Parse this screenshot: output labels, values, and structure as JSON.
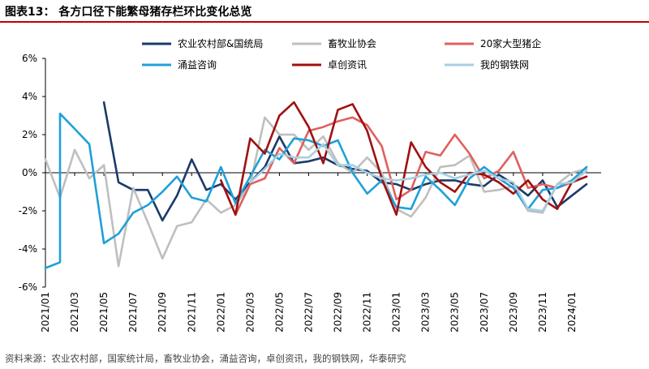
{
  "figure": {
    "title": "图表13：  各方口径下能繁母猪存栏环比变化总览",
    "source": "资料来源：农业农村部，国家统计局，畜牧业协会，涌益咨询，卓创资讯，我的钢铁网，华泰研究"
  },
  "chart_data": {
    "type": "line",
    "ylim": [
      -6,
      6
    ],
    "y_ticks": [
      6,
      4,
      2,
      0,
      -2,
      -4,
      -6
    ],
    "y_tick_labels": [
      "6%",
      "4%",
      "2%",
      "0%",
      "-2%",
      "-4%",
      "-6%"
    ],
    "x_range": [
      "2021/01",
      "2024/03"
    ],
    "x_tick_labels": [
      "2021/01",
      "2021/03",
      "2021/05",
      "2021/07",
      "2021/09",
      "2021/11",
      "2022/01",
      "2022/03",
      "2022/05",
      "2022/07",
      "2022/09",
      "2022/11",
      "2023/01",
      "2023/03",
      "2023/05",
      "2023/07",
      "2023/09",
      "2023/11",
      "2024/01"
    ],
    "legend_position": "top",
    "series": [
      {
        "name": "农业农村部&国统局",
        "color": "#1b3a6b",
        "points": [
          [
            "2021/05",
            3.7
          ],
          [
            "2021/06",
            -0.5
          ],
          [
            "2021/07",
            -0.9
          ],
          [
            "2021/08",
            -0.9
          ],
          [
            "2021/09",
            -2.5
          ],
          [
            "2021/10",
            -1.2
          ],
          [
            "2021/11",
            0.7
          ],
          [
            "2021/12",
            -0.9
          ],
          [
            "2022/01",
            -0.6
          ],
          [
            "2022/02",
            -1.4
          ],
          [
            "2022/03",
            -0.5
          ],
          [
            "2022/04",
            0.3
          ],
          [
            "2022/05",
            1.9
          ],
          [
            "2022/06",
            0.5
          ],
          [
            "2022/07",
            0.6
          ],
          [
            "2022/08",
            0.8
          ],
          [
            "2022/09",
            0.4
          ],
          [
            "2022/10",
            0.2
          ],
          [
            "2022/11",
            0.1
          ],
          [
            "2022/12",
            -0.5
          ],
          [
            "2023/01",
            -0.6
          ],
          [
            "2023/02",
            -0.9
          ],
          [
            "2023/03",
            -0.6
          ],
          [
            "2023/04",
            -0.4
          ],
          [
            "2023/05",
            -0.4
          ],
          [
            "2023/06",
            -0.6
          ],
          [
            "2023/07",
            -0.7
          ],
          [
            "2023/08",
            -0.1
          ],
          [
            "2023/09",
            -0.6
          ],
          [
            "2023/10",
            -1.2
          ],
          [
            "2023/11",
            -0.4
          ],
          [
            "2023/12",
            -1.8
          ],
          [
            "2024/01",
            -1.2
          ],
          [
            "2024/02",
            -0.6
          ]
        ]
      },
      {
        "name": "畜牧业协会",
        "color": "#bfbfbf",
        "points": [
          [
            "2021/01",
            0.7
          ],
          [
            "2021/02",
            -1.3
          ],
          [
            "2021/03",
            1.2
          ],
          [
            "2021/04",
            -0.3
          ],
          [
            "2021/05",
            0.4
          ],
          [
            "2021/06",
            -4.9
          ],
          [
            "2021/07",
            -0.8
          ],
          [
            "2021/08",
            -2.6
          ],
          [
            "2021/09",
            -4.5
          ],
          [
            "2021/10",
            -2.8
          ],
          [
            "2021/11",
            -2.6
          ],
          [
            "2021/12",
            -1.4
          ],
          [
            "2022/01",
            -2.1
          ],
          [
            "2022/02",
            -1.7
          ],
          [
            "2022/03",
            -0.6
          ],
          [
            "2022/04",
            2.9
          ],
          [
            "2022/05",
            2.0
          ],
          [
            "2022/06",
            2.0
          ],
          [
            "2022/07",
            1.2
          ],
          [
            "2022/08",
            1.9
          ],
          [
            "2022/09",
            0.5
          ],
          [
            "2022/10",
            0.0
          ],
          [
            "2022/11",
            0.8
          ],
          [
            "2022/12",
            0.0
          ],
          [
            "2023/01",
            -1.9
          ],
          [
            "2023/02",
            -2.3
          ],
          [
            "2023/03",
            -1.3
          ],
          [
            "2023/04",
            0.3
          ],
          [
            "2023/05",
            0.4
          ],
          [
            "2023/06",
            0.9
          ],
          [
            "2023/07",
            -1.0
          ],
          [
            "2023/08",
            -0.9
          ],
          [
            "2023/09",
            -0.7
          ],
          [
            "2023/10",
            -2.0
          ],
          [
            "2023/11",
            -2.1
          ],
          [
            "2023/12",
            -0.6
          ],
          [
            "2024/01",
            0.0
          ],
          [
            "2024/02",
            0.2
          ]
        ]
      },
      {
        "name": "20家大型猪企",
        "color": "#e06060",
        "points": [
          [
            "2022/02",
            -2.2
          ],
          [
            "2022/03",
            -0.6
          ],
          [
            "2022/04",
            -0.3
          ],
          [
            "2022/05",
            1.3
          ],
          [
            "2022/06",
            0.5
          ],
          [
            "2022/07",
            2.2
          ],
          [
            "2022/08",
            2.4
          ],
          [
            "2022/09",
            2.7
          ],
          [
            "2022/10",
            2.9
          ],
          [
            "2022/11",
            2.5
          ],
          [
            "2022/12",
            1.4
          ],
          [
            "2023/01",
            -1.4
          ],
          [
            "2023/02",
            -0.9
          ],
          [
            "2023/03",
            1.1
          ],
          [
            "2023/04",
            0.9
          ],
          [
            "2023/05",
            2.0
          ],
          [
            "2023/06",
            1.0
          ],
          [
            "2023/07",
            -0.3
          ],
          [
            "2023/08",
            0.1
          ],
          [
            "2023/09",
            1.1
          ],
          [
            "2023/10",
            -0.8
          ],
          [
            "2023/11",
            -0.6
          ],
          [
            "2023/12",
            -0.8
          ],
          [
            "2024/01",
            -0.5
          ],
          [
            "2024/02",
            -0.2
          ]
        ]
      },
      {
        "name": "涌益咨询",
        "color": "#1fa0d8",
        "points": [
          [
            "2021/01",
            -5.0
          ],
          [
            "2021/02",
            -4.7
          ],
          [
            "2021/02",
            3.1
          ],
          [
            "2021/03",
            2.3
          ],
          [
            "2021/04",
            1.5
          ],
          [
            "2021/05",
            -3.7
          ],
          [
            "2021/06",
            -3.2
          ],
          [
            "2021/07",
            -2.1
          ],
          [
            "2021/08",
            -1.7
          ],
          [
            "2021/09",
            -1.0
          ],
          [
            "2021/10",
            -0.2
          ],
          [
            "2021/11",
            -1.3
          ],
          [
            "2021/12",
            -1.5
          ],
          [
            "2022/01",
            0.3
          ],
          [
            "2022/02",
            -1.6
          ],
          [
            "2022/03",
            -0.2
          ],
          [
            "2022/04",
            1.2
          ],
          [
            "2022/05",
            0.7
          ],
          [
            "2022/06",
            1.8
          ],
          [
            "2022/07",
            1.7
          ],
          [
            "2022/08",
            1.4
          ],
          [
            "2022/09",
            1.7
          ],
          [
            "2022/10",
            0.0
          ],
          [
            "2022/11",
            -1.1
          ],
          [
            "2022/12",
            -0.4
          ],
          [
            "2023/01",
            -1.8
          ],
          [
            "2023/02",
            -1.9
          ],
          [
            "2023/03",
            -0.2
          ],
          [
            "2023/04",
            -0.9
          ],
          [
            "2023/05",
            -1.7
          ],
          [
            "2023/06",
            -0.3
          ],
          [
            "2023/07",
            0.3
          ],
          [
            "2023/08",
            -0.3
          ],
          [
            "2023/09",
            -0.8
          ],
          [
            "2023/10",
            -1.9
          ],
          [
            "2023/11",
            -0.9
          ],
          [
            "2023/12",
            -0.8
          ],
          [
            "2024/01",
            -0.4
          ],
          [
            "2024/02",
            0.3
          ]
        ]
      },
      {
        "name": "卓创资讯",
        "color": "#a01010",
        "points": [
          [
            "2022/01",
            -0.4
          ],
          [
            "2022/02",
            -2.2
          ],
          [
            "2022/03",
            1.8
          ],
          [
            "2022/04",
            1.0
          ],
          [
            "2022/05",
            3.0
          ],
          [
            "2022/06",
            3.7
          ],
          [
            "2022/07",
            2.4
          ],
          [
            "2022/08",
            0.5
          ],
          [
            "2022/09",
            3.3
          ],
          [
            "2022/10",
            3.6
          ],
          [
            "2022/11",
            2.2
          ],
          [
            "2022/12",
            -0.3
          ],
          [
            "2023/01",
            -2.2
          ],
          [
            "2023/02",
            1.6
          ],
          [
            "2023/03",
            0.3
          ],
          [
            "2023/04",
            -0.5
          ],
          [
            "2023/05",
            -1.0
          ],
          [
            "2023/06",
            0.0
          ],
          [
            "2023/07",
            -0.1
          ],
          [
            "2023/08",
            -0.5
          ],
          [
            "2023/09",
            -1.1
          ],
          [
            "2023/10",
            -0.4
          ],
          [
            "2023/11",
            -1.4
          ],
          [
            "2023/12",
            -1.9
          ],
          [
            "2024/01",
            -0.5
          ],
          [
            "2024/02",
            -0.2
          ]
        ]
      },
      {
        "name": "我的钢铁网",
        "color": "#a6cfe0",
        "points": [
          [
            "2022/03",
            -0.5
          ],
          [
            "2022/04",
            0.2
          ],
          [
            "2022/05",
            1.0
          ],
          [
            "2022/06",
            0.8
          ],
          [
            "2022/07",
            0.8
          ],
          [
            "2022/08",
            1.5
          ],
          [
            "2022/09",
            0.4
          ],
          [
            "2022/10",
            0.4
          ],
          [
            "2022/11",
            0.0
          ],
          [
            "2022/12",
            -0.3
          ],
          [
            "2023/01",
            -0.4
          ],
          [
            "2023/02",
            -0.3
          ],
          [
            "2023/03",
            -0.1
          ],
          [
            "2023/04",
            0.0
          ],
          [
            "2023/05",
            -0.3
          ],
          [
            "2023/06",
            -0.1
          ],
          [
            "2023/07",
            0.1
          ],
          [
            "2023/08",
            -0.3
          ],
          [
            "2023/09",
            -0.5
          ],
          [
            "2023/10",
            -1.9
          ],
          [
            "2023/11",
            -2.0
          ],
          [
            "2023/12",
            -0.6
          ],
          [
            "2024/01",
            -0.5
          ],
          [
            "2024/02",
            0.1
          ]
        ]
      }
    ]
  }
}
